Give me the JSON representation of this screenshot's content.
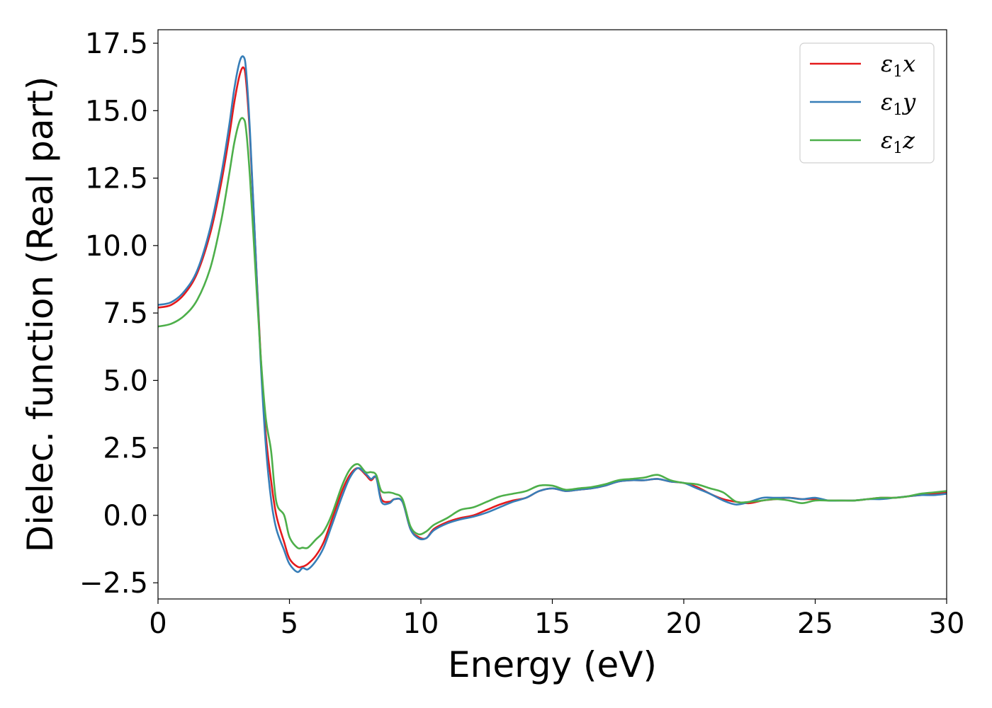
{
  "chart_data": {
    "type": "line",
    "title": "",
    "xlabel": "Energy (eV)",
    "ylabel": "Dielec. function (Real part)",
    "xlim": [
      0,
      30
    ],
    "ylim": [
      -3.1,
      18.0
    ],
    "xticks": [
      0,
      5,
      10,
      15,
      20,
      25,
      30
    ],
    "xtick_labels": [
      "0",
      "5",
      "10",
      "15",
      "20",
      "25",
      "30"
    ],
    "yticks": [
      -2.5,
      0.0,
      2.5,
      5.0,
      7.5,
      10.0,
      12.5,
      15.0,
      17.5
    ],
    "ytick_labels": [
      "−2.5",
      "0.0",
      "2.5",
      "5.0",
      "7.5",
      "10.0",
      "12.5",
      "15.0",
      "17.5"
    ],
    "grid": false,
    "legend_position": "top-right",
    "series": [
      {
        "name": "ε₁x",
        "legend_base": "ε",
        "legend_sub": "1",
        "legend_tail": "x",
        "color": "#e41a1c",
        "x": [
          0,
          0.5,
          1.0,
          1.5,
          2.0,
          2.4,
          2.7,
          2.9,
          3.1,
          3.25,
          3.35,
          3.5,
          3.7,
          3.9,
          4.1,
          4.3,
          4.5,
          4.8,
          5.0,
          5.3,
          5.5,
          5.7,
          6.0,
          6.3,
          6.6,
          7.0,
          7.3,
          7.6,
          7.9,
          8.1,
          8.3,
          8.5,
          8.8,
          9.0,
          9.3,
          9.6,
          9.9,
          10.2,
          10.5,
          11.0,
          11.5,
          12.0,
          12.5,
          13.0,
          13.5,
          14.0,
          14.5,
          15.0,
          15.5,
          16.0,
          16.5,
          17.0,
          17.5,
          18.0,
          18.5,
          19.0,
          19.5,
          20.0,
          20.5,
          21.0,
          21.5,
          22.0,
          22.5,
          23.0,
          23.5,
          24.0,
          24.5,
          25.0,
          25.5,
          26.0,
          26.5,
          27.0,
          27.5,
          28.0,
          28.5,
          29.0,
          29.5,
          30.0
        ],
        "y": [
          7.7,
          7.8,
          8.2,
          9.0,
          10.5,
          12.3,
          14.0,
          15.3,
          16.3,
          16.6,
          16.1,
          14.0,
          10.0,
          6.0,
          3.0,
          1.3,
          0.0,
          -1.0,
          -1.6,
          -1.9,
          -1.9,
          -1.8,
          -1.5,
          -1.0,
          -0.2,
          0.9,
          1.5,
          1.75,
          1.5,
          1.3,
          1.4,
          0.6,
          0.5,
          0.6,
          0.5,
          -0.5,
          -0.8,
          -0.85,
          -0.5,
          -0.25,
          -0.1,
          0.0,
          0.2,
          0.4,
          0.55,
          0.65,
          0.9,
          1.0,
          0.9,
          0.95,
          1.0,
          1.1,
          1.25,
          1.3,
          1.3,
          1.35,
          1.25,
          1.2,
          1.05,
          0.8,
          0.6,
          0.5,
          0.45,
          0.55,
          0.6,
          0.65,
          0.6,
          0.6,
          0.55,
          0.55,
          0.55,
          0.6,
          0.65,
          0.65,
          0.7,
          0.75,
          0.8,
          0.85
        ]
      },
      {
        "name": "ε₁y",
        "legend_base": "ε",
        "legend_sub": "1",
        "legend_tail": "y",
        "color": "#377eb8",
        "x": [
          0,
          0.5,
          1.0,
          1.5,
          2.0,
          2.4,
          2.7,
          2.9,
          3.1,
          3.25,
          3.35,
          3.5,
          3.7,
          3.9,
          4.1,
          4.3,
          4.5,
          4.8,
          5.0,
          5.3,
          5.5,
          5.7,
          6.0,
          6.3,
          6.6,
          7.0,
          7.3,
          7.6,
          7.9,
          8.1,
          8.3,
          8.5,
          8.8,
          9.0,
          9.3,
          9.6,
          9.9,
          10.2,
          10.5,
          11.0,
          11.5,
          12.0,
          12.5,
          13.0,
          13.5,
          14.0,
          14.5,
          15.0,
          15.5,
          16.0,
          16.5,
          17.0,
          17.5,
          18.0,
          18.5,
          19.0,
          19.5,
          20.0,
          20.5,
          21.0,
          21.5,
          22.0,
          22.5,
          23.0,
          23.5,
          24.0,
          24.5,
          25.0,
          25.5,
          26.0,
          26.5,
          27.0,
          27.5,
          28.0,
          28.5,
          29.0,
          29.5,
          30.0
        ],
        "y": [
          7.8,
          7.9,
          8.3,
          9.1,
          10.7,
          12.6,
          14.4,
          15.8,
          16.8,
          17.0,
          16.5,
          14.2,
          10.0,
          5.8,
          2.6,
          0.6,
          -0.5,
          -1.3,
          -1.8,
          -2.1,
          -1.95,
          -2.0,
          -1.7,
          -1.2,
          -0.4,
          0.7,
          1.4,
          1.75,
          1.55,
          1.35,
          1.4,
          0.5,
          0.45,
          0.6,
          0.5,
          -0.5,
          -0.85,
          -0.85,
          -0.55,
          -0.3,
          -0.15,
          -0.05,
          0.1,
          0.3,
          0.5,
          0.65,
          0.9,
          1.0,
          0.9,
          0.95,
          1.0,
          1.1,
          1.25,
          1.3,
          1.3,
          1.35,
          1.25,
          1.2,
          1.0,
          0.8,
          0.55,
          0.4,
          0.5,
          0.65,
          0.65,
          0.65,
          0.6,
          0.65,
          0.55,
          0.55,
          0.55,
          0.6,
          0.6,
          0.65,
          0.7,
          0.75,
          0.75,
          0.8
        ]
      },
      {
        "name": "ε₁z",
        "legend_base": "ε",
        "legend_sub": "1",
        "legend_tail": "z",
        "color": "#4daf4a",
        "x": [
          0,
          0.5,
          1.0,
          1.5,
          2.0,
          2.4,
          2.7,
          2.9,
          3.1,
          3.25,
          3.35,
          3.5,
          3.7,
          3.9,
          4.1,
          4.3,
          4.5,
          4.8,
          5.0,
          5.3,
          5.5,
          5.7,
          6.0,
          6.3,
          6.6,
          7.0,
          7.3,
          7.6,
          7.9,
          8.1,
          8.3,
          8.5,
          8.8,
          9.0,
          9.3,
          9.6,
          9.9,
          10.2,
          10.5,
          11.0,
          11.5,
          12.0,
          12.5,
          13.0,
          13.5,
          14.0,
          14.5,
          15.0,
          15.5,
          16.0,
          16.5,
          17.0,
          17.5,
          18.0,
          18.5,
          19.0,
          19.5,
          20.0,
          20.5,
          21.0,
          21.5,
          22.0,
          22.5,
          23.0,
          23.5,
          24.0,
          24.5,
          25.0,
          25.5,
          26.0,
          26.5,
          27.0,
          27.5,
          28.0,
          28.5,
          29.0,
          29.5,
          30.0
        ],
        "y": [
          7.0,
          7.1,
          7.4,
          8.0,
          9.2,
          10.9,
          12.6,
          13.8,
          14.6,
          14.7,
          14.3,
          12.5,
          9.2,
          6.0,
          3.6,
          2.4,
          0.5,
          0.0,
          -0.8,
          -1.2,
          -1.2,
          -1.2,
          -0.9,
          -0.6,
          0.0,
          1.1,
          1.7,
          1.9,
          1.6,
          1.6,
          1.5,
          0.9,
          0.85,
          0.8,
          0.6,
          -0.4,
          -0.7,
          -0.6,
          -0.35,
          -0.1,
          0.2,
          0.3,
          0.5,
          0.7,
          0.8,
          0.9,
          1.1,
          1.1,
          0.95,
          1.0,
          1.05,
          1.15,
          1.3,
          1.35,
          1.4,
          1.5,
          1.3,
          1.2,
          1.15,
          1.0,
          0.85,
          0.5,
          0.5,
          0.55,
          0.6,
          0.55,
          0.45,
          0.55,
          0.55,
          0.55,
          0.55,
          0.6,
          0.65,
          0.65,
          0.7,
          0.8,
          0.85,
          0.9
        ]
      }
    ]
  }
}
